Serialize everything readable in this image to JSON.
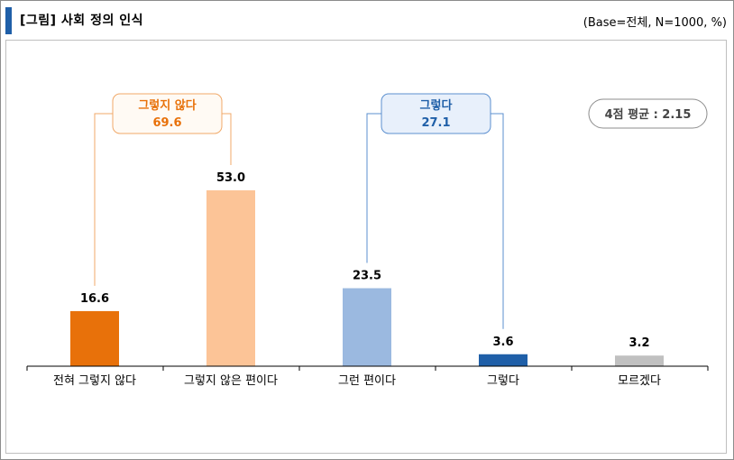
{
  "header": {
    "title": "[그림] 사회 정의 인식",
    "base_note": "(Base=전체, N=1000, %)"
  },
  "chart_data": {
    "type": "bar",
    "categories": [
      "전혀 그렇지 않다",
      "그렇지 않은 편이다",
      "그런 편이다",
      "그렇다",
      "모르겠다"
    ],
    "values": [
      16.6,
      53.0,
      23.5,
      3.6,
      3.2
    ],
    "value_labels": [
      "16.6",
      "53.0",
      "23.5",
      "3.6",
      "3.2"
    ],
    "colors": [
      "#e8710a",
      "#fcc497",
      "#9bb9e0",
      "#1f5fa8",
      "#c0c0c0"
    ],
    "ylim": [
      0,
      60
    ],
    "groups": [
      {
        "name": "그렇지 않다",
        "value": "69.6",
        "categories": [
          0,
          1
        ],
        "color": "#e8710a",
        "border": "#f0a868",
        "fill": "#fffaf4"
      },
      {
        "name": "그렇다",
        "value": "27.1",
        "categories": [
          2,
          3
        ],
        "color": "#1f5fa8",
        "border": "#5b8fcf",
        "fill": "#e8f0fb"
      }
    ],
    "annotation": "4점 평균 : 2.15"
  }
}
